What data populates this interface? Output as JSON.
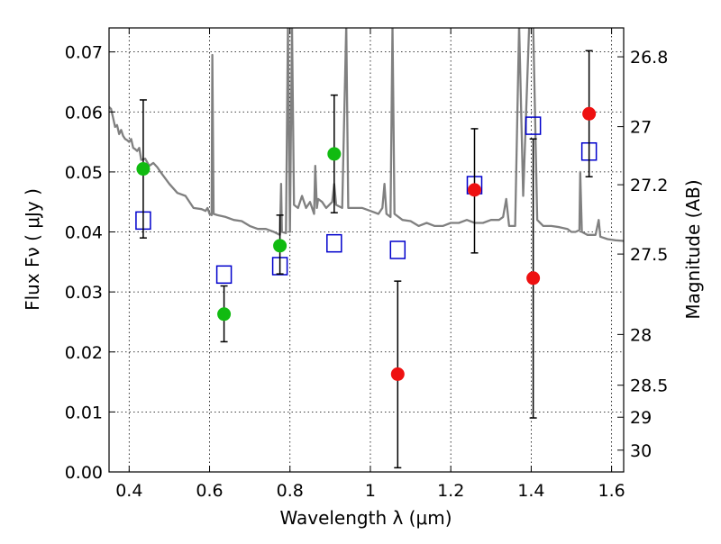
{
  "chart_data": {
    "type": "scatter",
    "xlabel": "Wavelength  λ (μm)",
    "ylabel": "Flux  Fν  ( μJy )",
    "y2label": "Magnitude (AB)",
    "xlim": [
      0.35,
      1.63
    ],
    "ylim": [
      0.0,
      0.074
    ],
    "grid": true,
    "x_ticks": [
      0.4,
      0.6,
      0.8,
      1.0,
      1.2,
      1.4,
      1.6
    ],
    "x_tick_labels": [
      "0.4",
      "0.6",
      "0.8",
      "1",
      "1.2",
      "1.4",
      "1.6"
    ],
    "y_ticks": [
      0.0,
      0.01,
      0.02,
      0.03,
      0.04,
      0.05,
      0.06,
      0.07
    ],
    "y_tick_labels": [
      "0.00",
      "0.01",
      "0.02",
      "0.03",
      "0.04",
      "0.05",
      "0.06",
      "0.07"
    ],
    "mag_ticks": [
      {
        "mag": 26.8,
        "label": "26.8"
      },
      {
        "mag": 27.0,
        "label": "27"
      },
      {
        "mag": 27.2,
        "label": "27.2"
      },
      {
        "mag": 27.5,
        "label": "27.5"
      },
      {
        "mag": 28.0,
        "label": "28"
      },
      {
        "mag": 28.5,
        "label": "28.5"
      },
      {
        "mag": 29.0,
        "label": "29"
      },
      {
        "mag": 30.0,
        "label": "30"
      }
    ],
    "colors": {
      "green": "#11bb11",
      "red": "#ee1111",
      "model_box": "#0000cc",
      "template": "#808080",
      "errorbar": "#000000"
    },
    "series": [
      {
        "color_key": "green",
        "points": [
          {
            "x": 0.435,
            "y": 0.0505,
            "ylo": 0.039,
            "yhi": 0.062
          },
          {
            "x": 0.636,
            "y": 0.0263,
            "ylo": 0.0217,
            "yhi": 0.031
          },
          {
            "x": 0.775,
            "y": 0.0377,
            "ylo": 0.033,
            "yhi": 0.0428
          },
          {
            "x": 0.91,
            "y": 0.053,
            "ylo": 0.0432,
            "yhi": 0.0628
          }
        ]
      },
      {
        "color_key": "red",
        "points": [
          {
            "x": 1.068,
            "y": 0.0163,
            "ylo": 0.0007,
            "yhi": 0.0318
          },
          {
            "x": 1.259,
            "y": 0.047,
            "ylo": 0.0365,
            "yhi": 0.0572
          },
          {
            "x": 1.405,
            "y": 0.0323,
            "ylo": 0.009,
            "yhi": 0.0555
          },
          {
            "x": 1.544,
            "y": 0.0597,
            "ylo": 0.0492,
            "yhi": 0.0702
          }
        ]
      }
    ],
    "model_points": [
      {
        "x": 0.435,
        "y": 0.0419
      },
      {
        "x": 0.636,
        "y": 0.0329
      },
      {
        "x": 0.775,
        "y": 0.0343
      },
      {
        "x": 0.91,
        "y": 0.0381
      },
      {
        "x": 1.068,
        "y": 0.037
      },
      {
        "x": 1.259,
        "y": 0.0478
      },
      {
        "x": 1.405,
        "y": 0.0577
      },
      {
        "x": 1.544,
        "y": 0.0534
      }
    ],
    "template_curve": [
      [
        0.35,
        0.0608
      ],
      [
        0.355,
        0.0605
      ],
      [
        0.36,
        0.059
      ],
      [
        0.365,
        0.0575
      ],
      [
        0.37,
        0.0578
      ],
      [
        0.375,
        0.0563
      ],
      [
        0.38,
        0.057
      ],
      [
        0.385,
        0.056
      ],
      [
        0.39,
        0.0555
      ],
      [
        0.395,
        0.0553
      ],
      [
        0.4,
        0.055
      ],
      [
        0.405,
        0.0555
      ],
      [
        0.41,
        0.054
      ],
      [
        0.415,
        0.0538
      ],
      [
        0.42,
        0.0535
      ],
      [
        0.425,
        0.054
      ],
      [
        0.43,
        0.052
      ],
      [
        0.44,
        0.0522
      ],
      [
        0.45,
        0.051
      ],
      [
        0.46,
        0.0515
      ],
      [
        0.47,
        0.0508
      ],
      [
        0.48,
        0.0498
      ],
      [
        0.5,
        0.048
      ],
      [
        0.52,
        0.0465
      ],
      [
        0.54,
        0.046
      ],
      [
        0.56,
        0.044
      ],
      [
        0.58,
        0.0438
      ],
      [
        0.59,
        0.0435
      ],
      [
        0.595,
        0.044
      ],
      [
        0.6,
        0.043
      ],
      [
        0.605,
        0.0428
      ],
      [
        0.607,
        0.0695
      ],
      [
        0.61,
        0.043
      ],
      [
        0.62,
        0.0428
      ],
      [
        0.64,
        0.0425
      ],
      [
        0.66,
        0.042
      ],
      [
        0.68,
        0.0418
      ],
      [
        0.7,
        0.041
      ],
      [
        0.72,
        0.0405
      ],
      [
        0.74,
        0.0405
      ],
      [
        0.76,
        0.04
      ],
      [
        0.775,
        0.0395
      ],
      [
        0.778,
        0.048
      ],
      [
        0.78,
        0.04
      ],
      [
        0.79,
        0.0398
      ],
      [
        0.795,
        0.0745
      ],
      [
        0.8,
        0.04
      ],
      [
        0.805,
        0.0745
      ],
      [
        0.81,
        0.0445
      ],
      [
        0.82,
        0.044
      ],
      [
        0.83,
        0.046
      ],
      [
        0.84,
        0.044
      ],
      [
        0.85,
        0.045
      ],
      [
        0.86,
        0.043
      ],
      [
        0.863,
        0.051
      ],
      [
        0.867,
        0.044
      ],
      [
        0.87,
        0.0455
      ],
      [
        0.88,
        0.045
      ],
      [
        0.89,
        0.044
      ],
      [
        0.905,
        0.045
      ],
      [
        0.91,
        0.048
      ],
      [
        0.915,
        0.0445
      ],
      [
        0.93,
        0.044
      ],
      [
        0.94,
        0.0745
      ],
      [
        0.945,
        0.044
      ],
      [
        0.96,
        0.044
      ],
      [
        0.98,
        0.044
      ],
      [
        1.0,
        0.0435
      ],
      [
        1.02,
        0.043
      ],
      [
        1.03,
        0.044
      ],
      [
        1.035,
        0.048
      ],
      [
        1.04,
        0.043
      ],
      [
        1.05,
        0.0425
      ],
      [
        1.055,
        0.0745
      ],
      [
        1.06,
        0.043
      ],
      [
        1.08,
        0.042
      ],
      [
        1.1,
        0.0418
      ],
      [
        1.12,
        0.041
      ],
      [
        1.14,
        0.0415
      ],
      [
        1.16,
        0.041
      ],
      [
        1.18,
        0.041
      ],
      [
        1.2,
        0.0415
      ],
      [
        1.22,
        0.0415
      ],
      [
        1.24,
        0.042
      ],
      [
        1.26,
        0.0415
      ],
      [
        1.28,
        0.0415
      ],
      [
        1.3,
        0.042
      ],
      [
        1.32,
        0.042
      ],
      [
        1.33,
        0.0425
      ],
      [
        1.338,
        0.0455
      ],
      [
        1.345,
        0.041
      ],
      [
        1.36,
        0.041
      ],
      [
        1.37,
        0.0745
      ],
      [
        1.38,
        0.046
      ],
      [
        1.395,
        0.0745
      ],
      [
        1.405,
        0.0745
      ],
      [
        1.415,
        0.042
      ],
      [
        1.43,
        0.041
      ],
      [
        1.45,
        0.041
      ],
      [
        1.47,
        0.0408
      ],
      [
        1.49,
        0.0405
      ],
      [
        1.5,
        0.04
      ],
      [
        1.51,
        0.04
      ],
      [
        1.52,
        0.0403
      ],
      [
        1.522,
        0.05
      ],
      [
        1.526,
        0.04
      ],
      [
        1.54,
        0.0395
      ],
      [
        1.56,
        0.0395
      ],
      [
        1.568,
        0.042
      ],
      [
        1.572,
        0.0392
      ],
      [
        1.59,
        0.0388
      ],
      [
        1.61,
        0.0386
      ],
      [
        1.63,
        0.0385
      ]
    ]
  }
}
